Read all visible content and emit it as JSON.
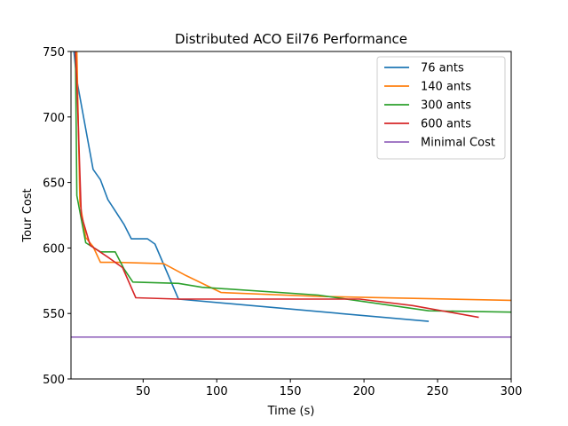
{
  "chart_data": {
    "type": "line",
    "title": "Distributed ACO Eil76 Performance",
    "xlabel": "Time (s)",
    "ylabel": "Tour Cost",
    "xlim": [
      1,
      300
    ],
    "ylim": [
      500,
      750
    ],
    "xticks": [
      50,
      100,
      150,
      200,
      250,
      300
    ],
    "yticks": [
      500,
      550,
      600,
      650,
      700,
      750
    ],
    "grid": false,
    "legend_position": "top-right",
    "series": [
      {
        "name": "76 ants",
        "color": "#1f77b4",
        "points": [
          [
            3,
            750
          ],
          [
            5,
            728
          ],
          [
            16,
            660
          ],
          [
            21,
            652
          ],
          [
            26,
            637
          ],
          [
            37,
            618
          ],
          [
            42,
            607
          ],
          [
            53,
            607
          ],
          [
            58,
            603
          ],
          [
            74,
            561
          ],
          [
            244,
            544
          ]
        ]
      },
      {
        "name": "140 ants",
        "color": "#ff7f0e",
        "points": [
          [
            5,
            750
          ],
          [
            7,
            635
          ],
          [
            11,
            608
          ],
          [
            16,
            601
          ],
          [
            21,
            589
          ],
          [
            32,
            589
          ],
          [
            64,
            588
          ],
          [
            79,
            579
          ],
          [
            103,
            566
          ],
          [
            169,
            563
          ],
          [
            300,
            560
          ]
        ]
      },
      {
        "name": "300 ants",
        "color": "#2ca02c",
        "points": [
          [
            4,
            750
          ],
          [
            5,
            640
          ],
          [
            11,
            604
          ],
          [
            21,
            597
          ],
          [
            31,
            597
          ],
          [
            37,
            584
          ],
          [
            43,
            574
          ],
          [
            74,
            573
          ],
          [
            90,
            570
          ],
          [
            169,
            564
          ],
          [
            244,
            552
          ],
          [
            300,
            551
          ]
        ]
      },
      {
        "name": "600 ants",
        "color": "#d62728",
        "points": [
          [
            4,
            750
          ],
          [
            5,
            726
          ],
          [
            8,
            625
          ],
          [
            14,
            602
          ],
          [
            26,
            593
          ],
          [
            36,
            585
          ],
          [
            45,
            562
          ],
          [
            74,
            561
          ],
          [
            197,
            561
          ],
          [
            233,
            556
          ],
          [
            278,
            547
          ]
        ]
      },
      {
        "name": "Minimal Cost",
        "color": "#9467bd",
        "points": [
          [
            1,
            532
          ],
          [
            300,
            532
          ]
        ]
      }
    ]
  }
}
